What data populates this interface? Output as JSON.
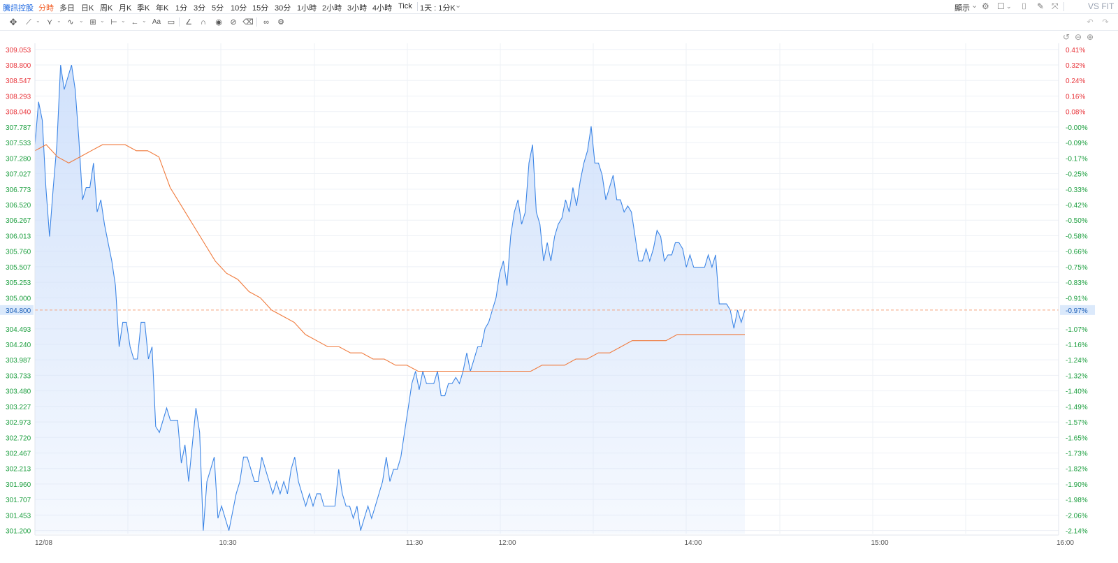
{
  "header": {
    "brand": "騰訊控股",
    "timeframes": [
      "分時",
      "多日",
      "日K",
      "周K",
      "月K",
      "季K",
      "年K",
      "1分",
      "3分",
      "5分",
      "10分",
      "15分",
      "30分",
      "1小時",
      "2小時",
      "3小時",
      "4小時",
      "Tick"
    ],
    "active_timeframe": "分時",
    "period_select": "1天 : 1分K",
    "display_menu": "顯示",
    "compare_label": "VS FIT"
  },
  "toolbar": {
    "icons": [
      "move-icon",
      "line-tool-icon",
      "pitchfork-icon",
      "wave-icon",
      "pattern-icon",
      "measure-icon",
      "arrow-icon",
      "text-icon",
      "comment-icon",
      "angle-icon",
      "magnet-icon",
      "eye-icon",
      "hide-icon",
      "trash-icon",
      "link-icon",
      "settings-icon"
    ],
    "text_tool_label": "Aa"
  },
  "colors": {
    "price_line": "#3d86e6",
    "price_fill": "#cfe0fb",
    "avg_line": "#f07a3c",
    "up": "#e8343a",
    "down": "#1b9e3e",
    "last_price_bg": "#dbe9fb"
  },
  "chart_data": {
    "type": "line",
    "symbol": "騰訊控股",
    "prev_close": 307.787,
    "last_price": 304.8,
    "last_pct": "-0.97%",
    "y_ticks": [
      "309.053",
      "308.800",
      "308.547",
      "308.293",
      "308.040",
      "307.787",
      "307.533",
      "307.280",
      "307.027",
      "306.773",
      "306.520",
      "306.267",
      "306.013",
      "305.760",
      "305.507",
      "305.253",
      "305.000",
      "304.493",
      "304.240",
      "303.987",
      "303.733",
      "303.480",
      "303.227",
      "302.973",
      "302.720",
      "302.467",
      "302.213",
      "301.960",
      "301.707",
      "301.453",
      "301.200"
    ],
    "pct_ticks": [
      "0.41%",
      "0.32%",
      "0.24%",
      "0.16%",
      "0.08%",
      "-0.00%",
      "-0.09%",
      "-0.17%",
      "-0.25%",
      "-0.33%",
      "-0.42%",
      "-0.50%",
      "-0.58%",
      "-0.66%",
      "-0.75%",
      "-0.83%",
      "-0.91%",
      "-0.97%",
      "-1.07%",
      "-1.16%",
      "-1.24%",
      "-1.32%",
      "-1.40%",
      "-1.49%",
      "-1.57%",
      "-1.65%",
      "-1.73%",
      "-1.82%",
      "-1.90%",
      "-1.98%",
      "-2.06%",
      "-2.14%"
    ],
    "x_ticks": [
      "12/08",
      "10:30",
      "11:30",
      "12:00",
      "14:00",
      "15:00",
      "16:00"
    ],
    "series": [
      {
        "role": "price",
        "values": [
          307.5,
          308.2,
          307.9,
          306.8,
          306.0,
          306.8,
          307.5,
          308.8,
          308.4,
          308.6,
          308.8,
          308.4,
          307.6,
          306.6,
          306.8,
          306.8,
          307.2,
          306.4,
          306.6,
          306.2,
          305.9,
          305.6,
          305.2,
          304.2,
          304.6,
          304.6,
          304.2,
          304.0,
          304.0,
          304.6,
          304.6,
          304.0,
          304.2,
          302.9,
          302.8,
          303.0,
          303.2,
          303.0,
          303.0,
          303.0,
          302.3,
          302.6,
          302.0,
          302.6,
          303.2,
          302.8,
          301.2,
          302.0,
          302.2,
          302.4,
          301.4,
          301.6,
          301.4,
          301.2,
          301.5,
          301.8,
          302.0,
          302.4,
          302.4,
          302.2,
          302.0,
          302.0,
          302.4,
          302.2,
          302.0,
          301.8,
          302.0,
          301.8,
          302.0,
          301.8,
          302.2,
          302.4,
          302.0,
          301.8,
          301.6,
          301.8,
          301.6,
          301.8,
          301.8,
          301.6,
          301.6,
          301.6,
          301.6,
          302.2,
          301.8,
          301.6,
          301.6,
          301.4,
          301.6,
          301.2,
          301.4,
          301.6,
          301.4,
          301.6,
          301.8,
          302.0,
          302.4,
          302.0,
          302.2,
          302.2,
          302.4,
          302.8,
          303.2,
          303.6,
          303.8,
          303.5,
          303.8,
          303.6,
          303.6,
          303.6,
          303.8,
          303.4,
          303.4,
          303.6,
          303.6,
          303.7,
          303.6,
          303.8,
          304.1,
          303.8,
          304.0,
          304.2,
          304.2,
          304.5,
          304.6,
          304.8,
          305.0,
          305.4,
          305.6,
          305.2,
          306.0,
          306.4,
          306.6,
          306.2,
          306.4,
          307.2,
          307.5,
          306.4,
          306.2,
          305.6,
          305.9,
          305.6,
          306.0,
          306.2,
          306.3,
          306.6,
          306.4,
          306.8,
          306.5,
          306.9,
          307.2,
          307.4,
          307.8,
          307.2,
          307.2,
          307.0,
          306.6,
          306.8,
          307.0,
          306.6,
          306.6,
          306.4,
          306.5,
          306.4,
          306.0,
          305.6,
          305.6,
          305.8,
          305.6,
          305.8,
          306.1,
          306.0,
          305.6,
          305.7,
          305.7,
          305.9,
          305.9,
          305.8,
          305.5,
          305.7,
          305.5,
          305.5,
          305.5,
          305.5,
          305.7,
          305.5,
          305.7,
          304.9,
          304.9,
          304.9,
          304.8,
          304.5,
          304.8,
          304.6,
          304.8
        ]
      },
      {
        "role": "average",
        "values": [
          307.4,
          307.5,
          307.3,
          307.2,
          307.3,
          307.4,
          307.5,
          307.5,
          307.5,
          307.4,
          307.4,
          307.3,
          306.8,
          306.5,
          306.2,
          305.9,
          305.6,
          305.4,
          305.3,
          305.1,
          305.0,
          304.8,
          304.7,
          304.6,
          304.4,
          304.3,
          304.2,
          304.2,
          304.1,
          304.1,
          304.0,
          304.0,
          303.9,
          303.9,
          303.8,
          303.8,
          303.8,
          303.8,
          303.8,
          303.8,
          303.8,
          303.8,
          303.8,
          303.8,
          303.8,
          303.9,
          303.9,
          303.9,
          304.0,
          304.0,
          304.1,
          304.1,
          304.2,
          304.3,
          304.3,
          304.3,
          304.3,
          304.4,
          304.4,
          304.4,
          304.4,
          304.4,
          304.4,
          304.4
        ]
      }
    ],
    "x_range": [
      "09:30",
      "16:00"
    ],
    "grid": true
  }
}
